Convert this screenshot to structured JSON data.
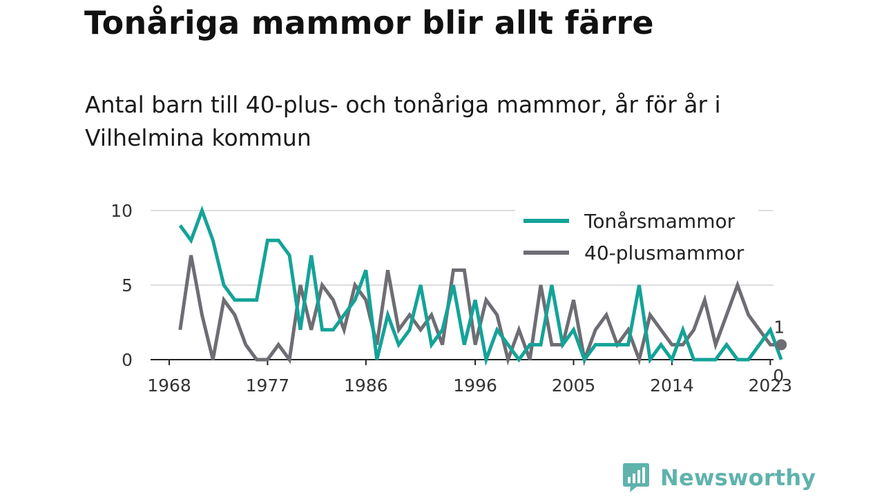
{
  "title": "Tonåriga mammor blir allt färre",
  "subtitle": "Antal barn till 40-plus- och tonåriga mammor, år för år i Vilhelmina kommun",
  "brand": "Newsworthy",
  "colors": {
    "teen": "#14a398",
    "forty": "#6e6d74",
    "grid": "#dddddd",
    "axis": "#222222",
    "brand": "#5fb3ac"
  },
  "chart_data": {
    "type": "line",
    "x": [
      1969,
      1970,
      1971,
      1972,
      1973,
      1974,
      1975,
      1976,
      1977,
      1978,
      1979,
      1980,
      1981,
      1982,
      1983,
      1984,
      1985,
      1986,
      1987,
      1988,
      1989,
      1990,
      1991,
      1992,
      1993,
      1994,
      1995,
      1996,
      1997,
      1998,
      1999,
      2000,
      2001,
      2002,
      2003,
      2004,
      2005,
      2006,
      2007,
      2008,
      2009,
      2010,
      2011,
      2012,
      2013,
      2014,
      2015,
      2016,
      2017,
      2018,
      2019,
      2020,
      2021,
      2022,
      2023,
      2024
    ],
    "series": [
      {
        "name": "Tonårsmammor",
        "color": "#14a398",
        "values": [
          9,
          8,
          10,
          8,
          5,
          4,
          4,
          4,
          8,
          8,
          7,
          2,
          7,
          2,
          2,
          3,
          4,
          6,
          0,
          3,
          1,
          2,
          5,
          1,
          2,
          5,
          1,
          4,
          0,
          2,
          1,
          0,
          1,
          1,
          5,
          1,
          2,
          0,
          1,
          1,
          1,
          1,
          5,
          0,
          1,
          0,
          2,
          0,
          0,
          0,
          1,
          0,
          0,
          1,
          2,
          0
        ]
      },
      {
        "name": "40-plusmammor",
        "color": "#6e6d74",
        "values": [
          2,
          7,
          3,
          0,
          4,
          3,
          1,
          0,
          0,
          1,
          0,
          5,
          2,
          5,
          4,
          2,
          5,
          4,
          1,
          6,
          2,
          3,
          2,
          3,
          1,
          6,
          6,
          1,
          4,
          3,
          0,
          2,
          0,
          5,
          1,
          1,
          4,
          0,
          2,
          3,
          1,
          2,
          0,
          3,
          2,
          1,
          1,
          2,
          4,
          1,
          3,
          5,
          3,
          2,
          1,
          1
        ]
      }
    ],
    "end_labels": [
      {
        "series": "40-plusmammor",
        "x": 2024,
        "value": "1"
      },
      {
        "series": "Tonårsmammor",
        "x": 2024,
        "value": "0"
      }
    ],
    "xticks": [
      1968,
      1977,
      1986,
      1996,
      2005,
      2014,
      2023
    ],
    "yticks": [
      0,
      5,
      10
    ],
    "xlim": [
      1968,
      2025
    ],
    "ylim": [
      0,
      10
    ],
    "grid": true,
    "legend_position": "top-right"
  }
}
